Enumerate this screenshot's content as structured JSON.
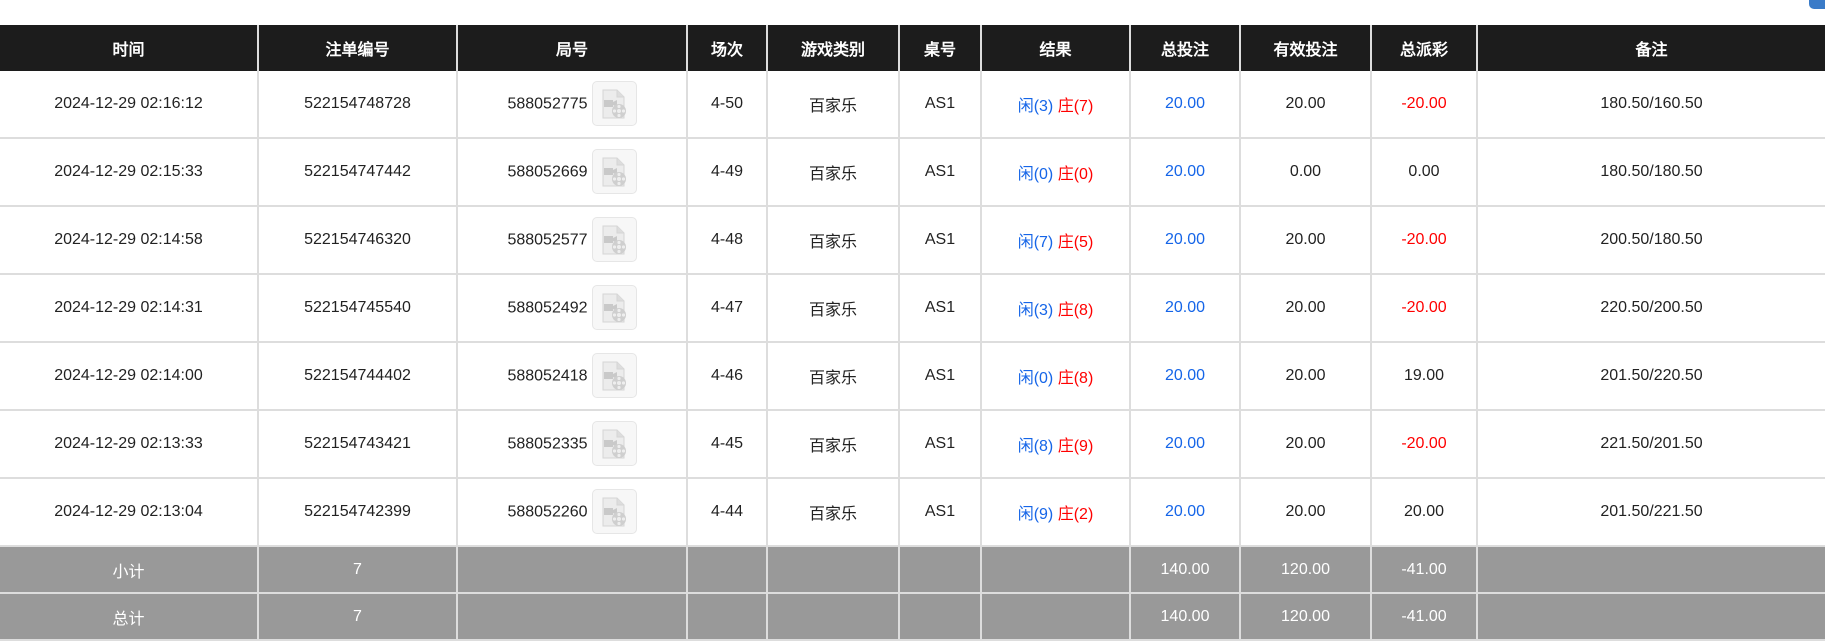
{
  "colors": {
    "header_bg": "#1c1c1c",
    "summary_bg": "#999999",
    "blue": "#1565e8",
    "red": "#ff0000"
  },
  "headers": [
    "时间",
    "注单编号",
    "局号",
    "场次",
    "游戏类别",
    "桌号",
    "结果",
    "总投注",
    "有效投注",
    "总派彩",
    "备注"
  ],
  "rows": [
    {
      "time": "2024-12-29 02:16:12",
      "bet_id": "522154748728",
      "round": "588052775",
      "session": "4-50",
      "game": "百家乐",
      "table": "AS1",
      "player": "闲(3)",
      "banker": "庄(7)",
      "total_bet": "20.00",
      "valid_bet": "20.00",
      "payout": "-20.00",
      "payout_negative": true,
      "note": "180.50/160.50"
    },
    {
      "time": "2024-12-29 02:15:33",
      "bet_id": "522154747442",
      "round": "588052669",
      "session": "4-49",
      "game": "百家乐",
      "table": "AS1",
      "player": "闲(0)",
      "banker": "庄(0)",
      "total_bet": "20.00",
      "valid_bet": "0.00",
      "payout": "0.00",
      "payout_negative": false,
      "note": "180.50/180.50"
    },
    {
      "time": "2024-12-29 02:14:58",
      "bet_id": "522154746320",
      "round": "588052577",
      "session": "4-48",
      "game": "百家乐",
      "table": "AS1",
      "player": "闲(7)",
      "banker": "庄(5)",
      "total_bet": "20.00",
      "valid_bet": "20.00",
      "payout": "-20.00",
      "payout_negative": true,
      "note": "200.50/180.50"
    },
    {
      "time": "2024-12-29 02:14:31",
      "bet_id": "522154745540",
      "round": "588052492",
      "session": "4-47",
      "game": "百家乐",
      "table": "AS1",
      "player": "闲(3)",
      "banker": "庄(8)",
      "total_bet": "20.00",
      "valid_bet": "20.00",
      "payout": "-20.00",
      "payout_negative": true,
      "note": "220.50/200.50"
    },
    {
      "time": "2024-12-29 02:14:00",
      "bet_id": "522154744402",
      "round": "588052418",
      "session": "4-46",
      "game": "百家乐",
      "table": "AS1",
      "player": "闲(0)",
      "banker": "庄(8)",
      "total_bet": "20.00",
      "valid_bet": "20.00",
      "payout": "19.00",
      "payout_negative": false,
      "note": "201.50/220.50"
    },
    {
      "time": "2024-12-29 02:13:33",
      "bet_id": "522154743421",
      "round": "588052335",
      "session": "4-45",
      "game": "百家乐",
      "table": "AS1",
      "player": "闲(8)",
      "banker": "庄(9)",
      "total_bet": "20.00",
      "valid_bet": "20.00",
      "payout": "-20.00",
      "payout_negative": true,
      "note": "221.50/201.50"
    },
    {
      "time": "2024-12-29 02:13:04",
      "bet_id": "522154742399",
      "round": "588052260",
      "session": "4-44",
      "game": "百家乐",
      "table": "AS1",
      "player": "闲(9)",
      "banker": "庄(2)",
      "total_bet": "20.00",
      "valid_bet": "20.00",
      "payout": "20.00",
      "payout_negative": false,
      "note": "201.50/221.50"
    }
  ],
  "summary": [
    {
      "label": "小计",
      "count": "7",
      "total_bet": "140.00",
      "valid_bet": "120.00",
      "payout": "-41.00"
    },
    {
      "label": "总计",
      "count": "7",
      "total_bet": "140.00",
      "valid_bet": "120.00",
      "payout": "-41.00"
    }
  ],
  "icons": {
    "replay": "video-file-icon"
  }
}
